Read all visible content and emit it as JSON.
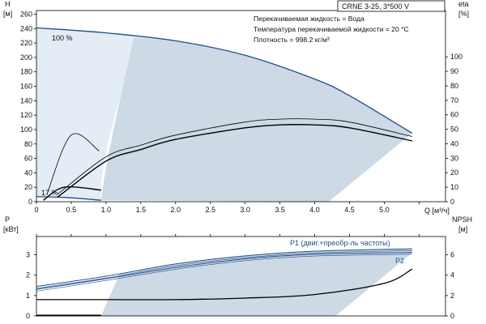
{
  "colors": {
    "curve": "#1f4e8c",
    "fill": "#cdd9e5",
    "fill_light": "#e4ecf5",
    "text": "#111111",
    "frame": "#000000"
  },
  "header": {
    "title": "CRNE 3-25, 3*500 V",
    "info_lines": [
      "Перекачиваемая жидкость = Вода",
      "Температура перекачиваемой жидкости = 20 °C",
      "Плотность = 998.2 кг/м³"
    ]
  },
  "labels": {
    "left_top": "H",
    "left_top_unit": "[м]",
    "right_top": "eta",
    "right_top_unit": "[%]",
    "x_axis": "Q [м³/ч]",
    "left_bottom": "P",
    "left_bottom_unit": "[кВт]",
    "right_bottom": "NPSH",
    "right_bottom_unit": "[м]",
    "speed_max": "100 %",
    "speed_min": "17 %",
    "p1": "P1 (двиг.+преобр-ль частоты)",
    "p2": "P2"
  },
  "chart_data": [
    {
      "type": "line",
      "panel": "top",
      "x": [
        0,
        0.5,
        1.0,
        1.5,
        2.0,
        2.5,
        3.0,
        3.5,
        4.0,
        4.5,
        5.0,
        5.5
      ],
      "x_tick_labels": [
        "0",
        "0.5",
        "1.0",
        "1.5",
        "2.0",
        "2.5",
        "3.0",
        "3.5",
        "4.0",
        "4.5",
        "5.0",
        "Q"
      ],
      "xlim": [
        0,
        5.88
      ],
      "ylim_left": [
        0,
        265
      ],
      "yticks_left": [
        0,
        20,
        40,
        60,
        80,
        100,
        120,
        140,
        160,
        180,
        200,
        220,
        240,
        260
      ],
      "ylim_right": [
        0,
        132
      ],
      "yticks_right": [
        0,
        10,
        20,
        30,
        40,
        50,
        60,
        70,
        80,
        90,
        100
      ],
      "xlabel": "Q [м³/ч]",
      "ylabel": "H [м]",
      "ylabel_right": "eta [%]",
      "series": [
        {
          "name": "100 %",
          "axis": "left",
          "x": [
            0,
            1.0,
            2.0,
            3.0,
            4.0,
            4.5,
            5.4
          ],
          "y": [
            241,
            234,
            223,
            203,
            170,
            147,
            95
          ]
        },
        {
          "name": "17 %",
          "axis": "left",
          "x": [
            0,
            0.4,
            0.93
          ],
          "y": [
            7,
            6,
            2
          ]
        },
        {
          "axis": "right",
          "x": [
            0.15,
            0.5,
            0.9
          ],
          "y": [
            5,
            46,
            35
          ]
        },
        {
          "axis": "right",
          "x": [
            0.1,
            0.4,
            0.93
          ],
          "y": [
            1,
            10,
            8
          ]
        },
        {
          "axis": "right",
          "x": [
            0.3,
            1.0,
            1.5,
            2.0,
            3.0,
            3.5,
            4.0,
            4.5,
            5.4
          ],
          "y": [
            5,
            31,
            39,
            46,
            55,
            57,
            57,
            55,
            45
          ]
        },
        {
          "axis": "right",
          "x": [
            0.3,
            1.0,
            1.5,
            2.0,
            3.0,
            3.5,
            4.0,
            4.5,
            5.4
          ],
          "y": [
            3,
            28,
            36,
            43,
            51,
            53,
            53,
            51,
            42
          ]
        }
      ]
    },
    {
      "type": "line",
      "panel": "bottom",
      "xlim": [
        0,
        5.88
      ],
      "ylim_left": [
        0,
        3.9
      ],
      "yticks_left": [
        0,
        1,
        2,
        3
      ],
      "ylim_right": [
        0,
        7.8
      ],
      "yticks_right": [
        0,
        2,
        4,
        6
      ],
      "ylabel": "P [кВт]",
      "ylabel_right": "NPSH [м]",
      "series": [
        {
          "name": "P1 (двиг.+преобр-ль частоты)",
          "axis": "left",
          "x": [
            0,
            1.0,
            2.0,
            3.0,
            4.0,
            5.4
          ],
          "y": [
            1.45,
            1.95,
            2.55,
            2.95,
            3.18,
            3.3
          ]
        },
        {
          "name": "P2",
          "axis": "left",
          "x": [
            0,
            1.0,
            2.0,
            3.0,
            4.0,
            5.4
          ],
          "y": [
            1.3,
            1.83,
            2.38,
            2.8,
            3.03,
            3.12
          ]
        },
        {
          "axis": "right",
          "x": [
            0,
            1.0,
            2.0,
            3.0,
            4.0,
            5.0,
            5.4
          ],
          "y": [
            1.6,
            1.6,
            1.6,
            1.75,
            2.1,
            3.2,
            4.6
          ]
        },
        {
          "axis": "right",
          "x": [
            0,
            0.93
          ],
          "y": [
            0.05,
            0.05
          ]
        }
      ]
    }
  ]
}
